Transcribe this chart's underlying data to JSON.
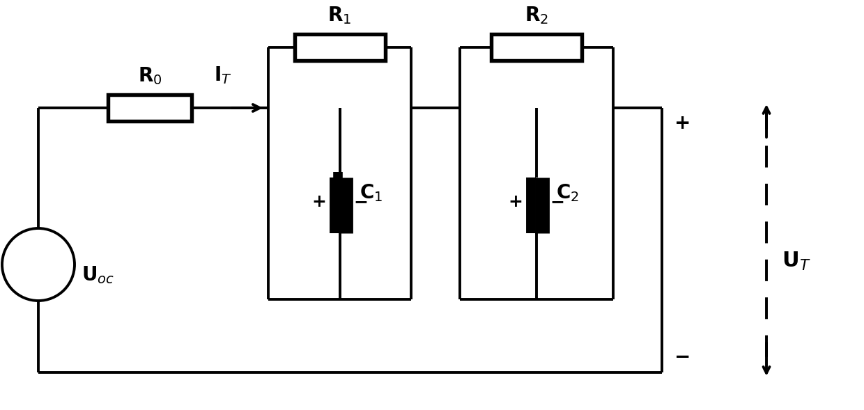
{
  "fig_width": 12.4,
  "fig_height": 5.89,
  "dpi": 100,
  "bg_color": "#ffffff",
  "line_color": "#000000",
  "line_width": 2.8,
  "labels": {
    "R0": "R$_0$",
    "R1": "R$_1$",
    "R2": "R$_2$",
    "C1": "C$_1$",
    "C2": "C$_2$",
    "IT": "I$_T$",
    "UOC": "U$_{oc}$",
    "UT": "U$_T$"
  },
  "font_size": 20
}
